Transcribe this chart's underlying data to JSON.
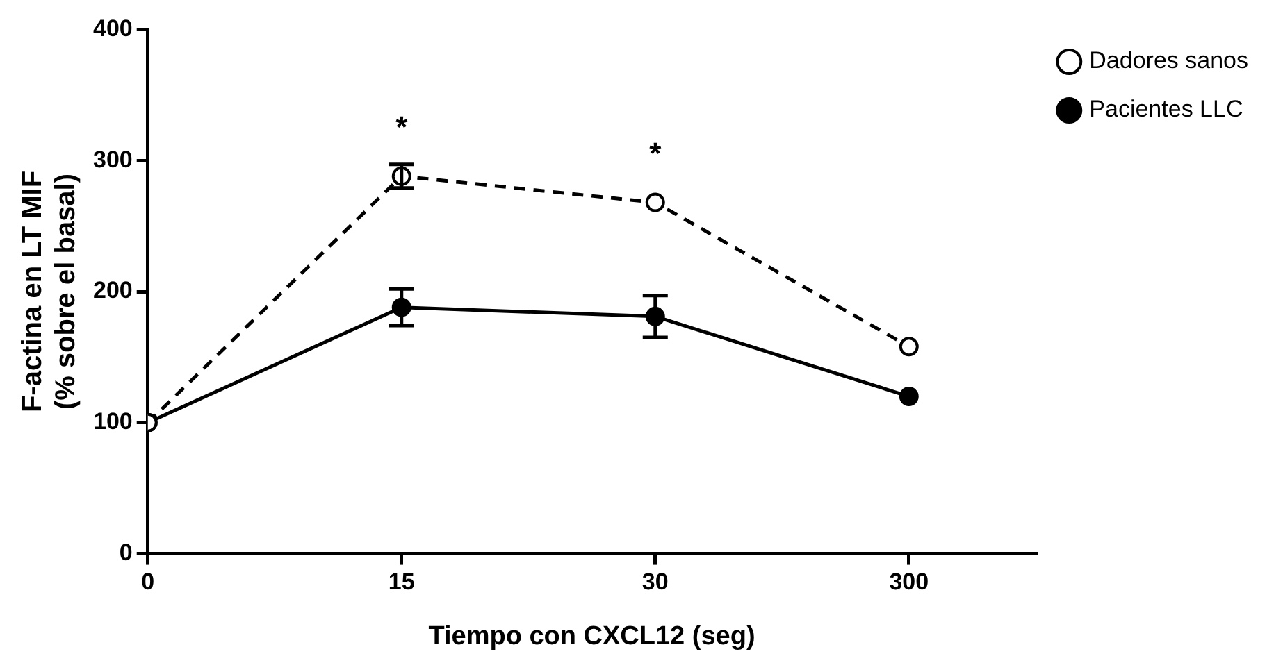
{
  "chart_data": {
    "type": "line",
    "xlabel": "Tiempo con CXCL12 (seg)",
    "ylabel": "F-actina en LT MIF\n(% sobre el basal)",
    "categories": [
      "0",
      "15",
      "30",
      "300"
    ],
    "series": [
      {
        "name": "Dadores sanos",
        "color": "#000000",
        "values": [
          100,
          288,
          268,
          158
        ],
        "errors": [
          null,
          9,
          null,
          null
        ],
        "line_style": "dashed"
      },
      {
        "name": "Pacientes LLC",
        "color": "#000000",
        "values": [
          100,
          188,
          181,
          120
        ],
        "errors": [
          null,
          14,
          16,
          null
        ],
        "line_style": "solid"
      }
    ],
    "ylim": [
      0,
      400
    ],
    "yticks": [
      0,
      100,
      200,
      300,
      400
    ],
    "grid": false,
    "legend": "top right",
    "marker": "circle",
    "annotations": [
      {
        "text": "*",
        "x": "15",
        "y": 288
      },
      {
        "text": "*",
        "x": "30",
        "y": 268
      }
    ]
  }
}
